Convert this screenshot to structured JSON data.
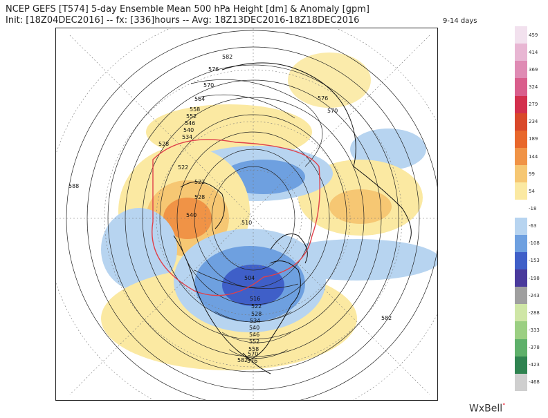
{
  "header": {
    "title_line1": "NCEP GEFS [T574] 5-day Ensemble Mean 500 hPa Height [dm] & Anomaly [gpm]",
    "title_line2": "Init: [18Z04DEC2016] -- fx: [336]hours -- Avg: 18Z13DEC2016-18Z18DEC2016",
    "range_label": "9-14 days"
  },
  "colorbar": {
    "labels": [
      "459",
      "414",
      "369",
      "324",
      "279",
      "234",
      "189",
      "144",
      "99",
      "54",
      "-18",
      "-63",
      "-108",
      "-153",
      "-198",
      "-243",
      "-288",
      "-333",
      "-378",
      "-423",
      "-468"
    ],
    "colors": [
      "#f2e1ee",
      "#e8b6d3",
      "#df8bb4",
      "#d95e8c",
      "#d32f4d",
      "#d9482a",
      "#e8672b",
      "#f09346",
      "#f6c773",
      "#fbe9a2",
      "#ffffff",
      "#b7d4f0",
      "#6ea0e0",
      "#3f5fc8",
      "#4a3a9c",
      "#9f9f9f",
      "#cfe6a6",
      "#9bcf82",
      "#5eb06a",
      "#2f8350",
      "#cfcfcf"
    ]
  },
  "contour_labels": [
    "582",
    "576",
    "570",
    "564",
    "558",
    "552",
    "546",
    "540",
    "534",
    "528",
    "522",
    "522",
    "528",
    "540",
    "510",
    "504",
    "516",
    "522",
    "528",
    "534",
    "540",
    "546",
    "552",
    "558",
    "570",
    "576",
    "582",
    "588",
    "570",
    "576",
    "582"
  ],
  "icons": {
    "map": "polar-stereographic-map"
  },
  "brand": {
    "text": "WxBell",
    "dot": "°"
  }
}
